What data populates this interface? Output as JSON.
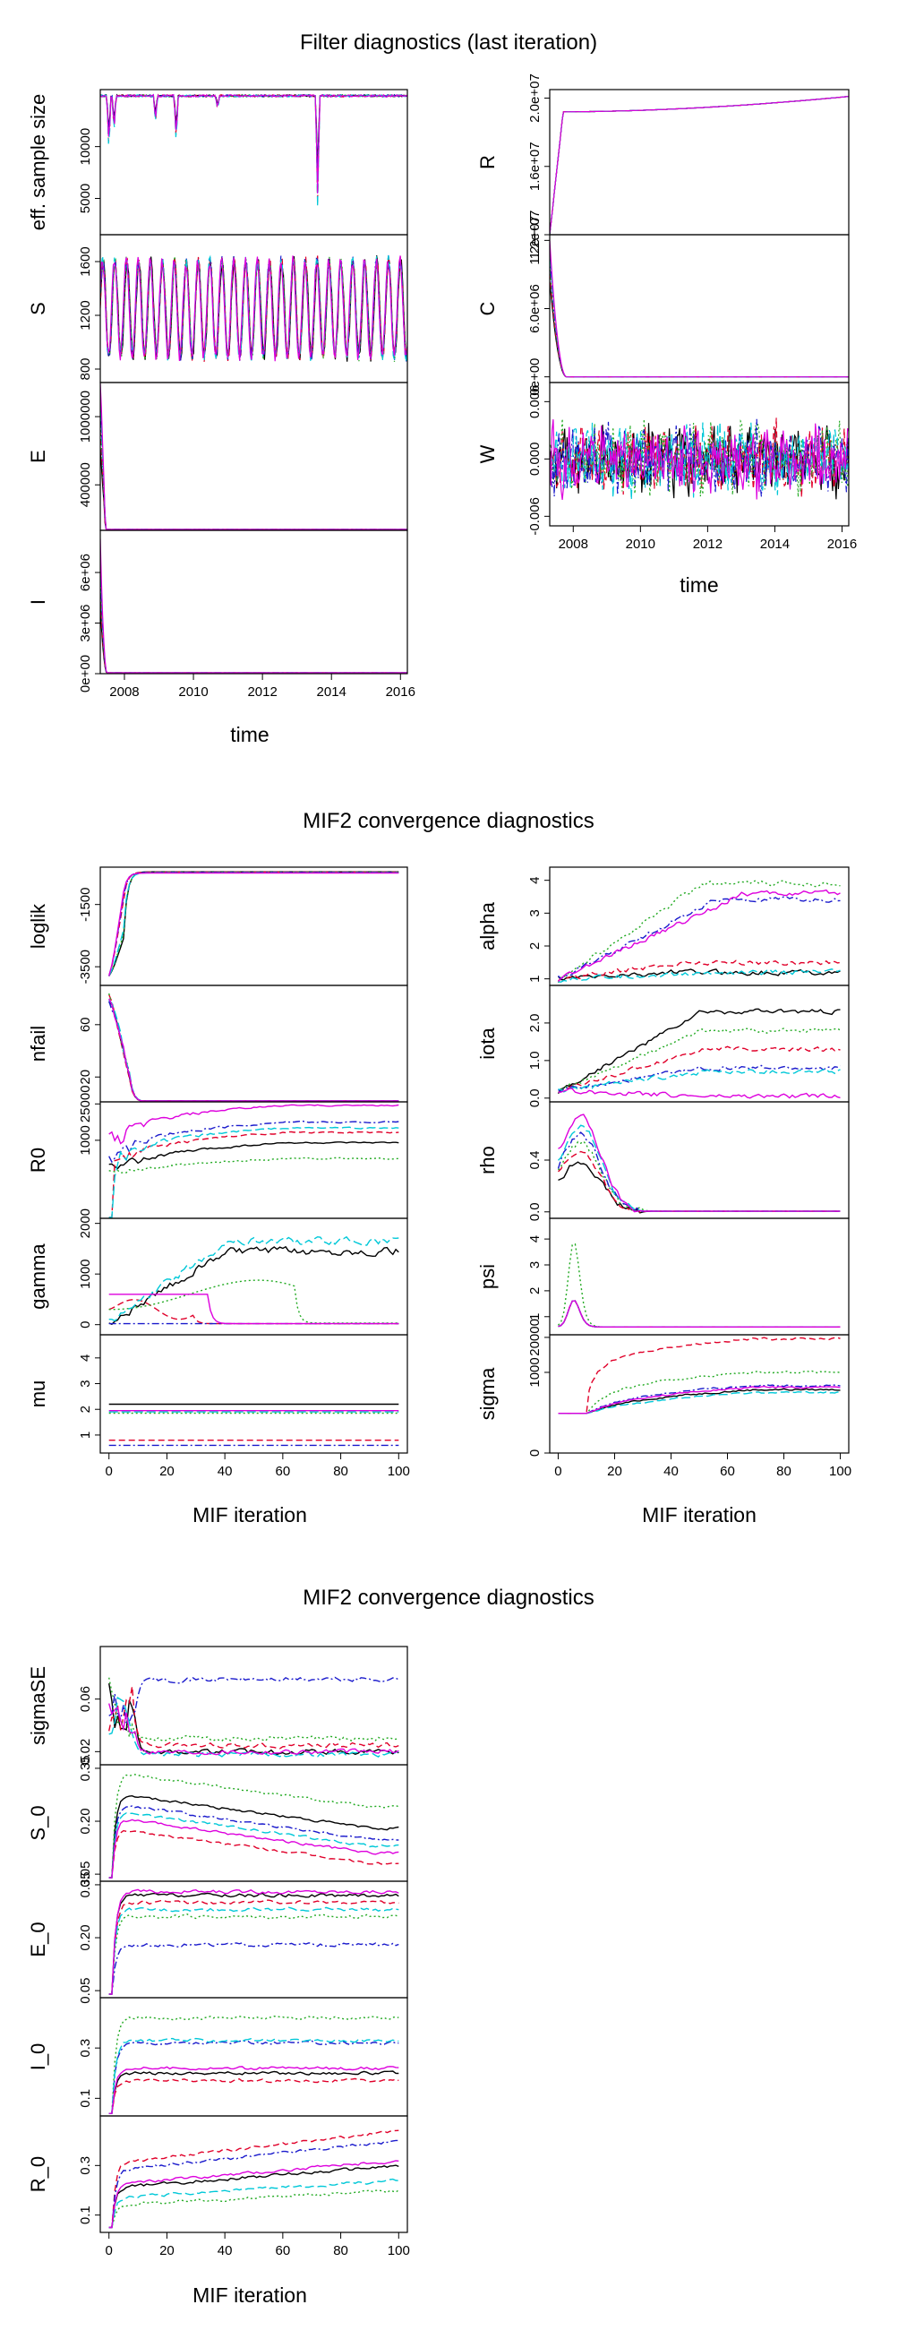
{
  "titles": {
    "section1": "Filter diagnostics (last iteration)",
    "section2": "MIF2 convergence diagnostics",
    "section3": "MIF2 convergence diagnostics"
  },
  "xlabels": {
    "time": "time",
    "mif": "MIF iteration"
  },
  "xticks": {
    "time": [
      "2008",
      "2010",
      "2012",
      "2014",
      "2016"
    ],
    "mif": [
      "0",
      "20",
      "40",
      "60",
      "80",
      "100"
    ]
  },
  "series_colors": [
    "#000000",
    "#e0002a",
    "#22aa22",
    "#1a1acc",
    "#00c8d8",
    "#dd00dd"
  ],
  "chart_data": [
    {
      "type": "line",
      "title": "Filter diagnostics (last iteration)",
      "xlabel": "time",
      "xlim": [
        2007.3,
        2016.2
      ],
      "panels": [
        {
          "ylabel": "eff. sample size",
          "yticks": [
            "5000",
            "10000"
          ],
          "ylim": [
            1500,
            15500
          ],
          "note": "near 15000 throughout with sharp dips (~2008.9, ~2009.5, ~2013.6 to ~2500)"
        },
        {
          "ylabel": "S",
          "yticks": [
            "800",
            "1200",
            "1600"
          ],
          "ylim": [
            700,
            1800
          ],
          "note": "seasonal oscillation between ~850 and ~1650"
        },
        {
          "ylabel": "E",
          "yticks": [
            "400000",
            "1000000"
          ],
          "ylim": [
            0,
            1300000
          ],
          "note": "spike to ~1200000 at start then ~0"
        },
        {
          "ylabel": "I",
          "yticks": [
            "0e+00",
            "3e+06",
            "6e+06"
          ],
          "ylim": [
            0,
            8500000
          ],
          "note": "spike to ~8000000 at start then ~0"
        },
        {
          "ylabel": "R",
          "yticks": [
            "1.2e+07",
            "1.6e+07",
            "2.0e+07"
          ],
          "ylim": [
            12000000.0,
            20500000.0
          ],
          "note": "rises to ~1.92e7 by 2007.7 then slowly to ~2.0e7"
        },
        {
          "ylabel": "C",
          "yticks": [
            "0e+00",
            "6.0e+06",
            "1.2e+07"
          ],
          "ylim": [
            -500000.0,
            12500000.0
          ],
          "note": "drops from ~1.2e7 to ~0 by 2007.8"
        },
        {
          "ylabel": "W",
          "yticks": [
            "-0.006",
            "0.000",
            "0.006"
          ],
          "ylim": [
            -0.007,
            0.008
          ],
          "note": "noise around 0"
        }
      ]
    },
    {
      "type": "line",
      "title": "MIF2 convergence diagnostics",
      "xlabel": "MIF iteration",
      "xlim": [
        0,
        100
      ],
      "panels": [
        {
          "ylabel": "loglik",
          "yticks": [
            "-3500",
            "-1500"
          ],
          "ylim": [
            -4100,
            -300
          ]
        },
        {
          "ylabel": "nfail",
          "yticks": [
            "20",
            "60"
          ],
          "ylim": [
            0,
            90
          ]
        },
        {
          "ylabel": "R0",
          "yticks": [
            "1000",
            "25000"
          ],
          "ylim": [
            0,
            30000
          ],
          "scale": "log"
        },
        {
          "ylabel": "gamma",
          "yticks": [
            "0",
            "1000",
            "2000"
          ],
          "ylim": [
            -200,
            2100
          ]
        },
        {
          "ylabel": "mu",
          "yticks": [
            "1",
            "2",
            "3",
            "4"
          ],
          "ylim": [
            0.3,
            4.9
          ]
        },
        {
          "ylabel": "alpha",
          "yticks": [
            "1",
            "2",
            "3",
            "4"
          ],
          "ylim": [
            0.8,
            4.4
          ]
        },
        {
          "ylabel": "iota",
          "yticks": [
            "0.0",
            "1.0",
            "2.0"
          ],
          "ylim": [
            -0.1,
            3.0
          ]
        },
        {
          "ylabel": "rho",
          "yticks": [
            "0.0",
            "0.4"
          ],
          "ylim": [
            -0.05,
            0.85
          ]
        },
        {
          "ylabel": "psi",
          "yticks": [
            "1",
            "2",
            "3",
            "4"
          ],
          "ylim": [
            0.3,
            4.8
          ]
        },
        {
          "ylabel": "sigma",
          "yticks": [
            "0",
            "1000",
            "20000"
          ],
          "ylim": [
            0,
            25000
          ],
          "scale": "log"
        }
      ]
    },
    {
      "type": "line",
      "title": "MIF2 convergence diagnostics",
      "xlabel": "MIF iteration",
      "xlim": [
        0,
        100
      ],
      "panels": [
        {
          "ylabel": "sigmaSE",
          "yticks": [
            "0.02",
            "0.06"
          ],
          "ylim": [
            0.01,
            0.1
          ]
        },
        {
          "ylabel": "S_0",
          "yticks": [
            "0.05",
            "0.20",
            "0.35"
          ],
          "ylim": [
            0.03,
            0.36
          ]
        },
        {
          "ylabel": "E_0",
          "yticks": [
            "0.05",
            "0.20",
            "0.35"
          ],
          "ylim": [
            0.03,
            0.36
          ]
        },
        {
          "ylabel": "I_0",
          "yticks": [
            "0.1",
            "0.3"
          ],
          "ylim": [
            0.03,
            0.5
          ]
        },
        {
          "ylabel": "R_0",
          "yticks": [
            "0.1",
            "0.3"
          ],
          "ylim": [
            0.03,
            0.5
          ]
        }
      ]
    }
  ]
}
